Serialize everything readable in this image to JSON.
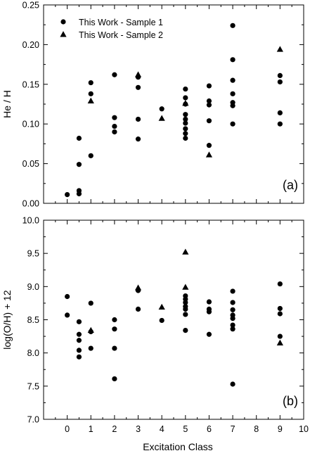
{
  "chart_data": [
    {
      "type": "scatter",
      "panel_label": "(a)",
      "ylabel": "He / H",
      "xlim": [
        -1,
        10
      ],
      "ylim": [
        0.0,
        0.25
      ],
      "yticks": [
        0.0,
        0.05,
        0.1,
        0.15,
        0.2,
        0.25
      ],
      "ytick_labels": [
        "0.00",
        "0.05",
        "0.10",
        "0.15",
        "0.20",
        "0.25"
      ],
      "legend": {
        "placement": "top-left",
        "entries": [
          {
            "label": "This Work - Sample 1",
            "marker": "circle"
          },
          {
            "label": "This Work - Sample 2",
            "marker": "triangle"
          }
        ]
      },
      "series": [
        {
          "name": "This Work - Sample 1",
          "marker": "circle",
          "points": [
            [
              0,
              0.011
            ],
            [
              0.5,
              0.082
            ],
            [
              0.5,
              0.049
            ],
            [
              0.5,
              0.016
            ],
            [
              0.5,
              0.012
            ],
            [
              1,
              0.152
            ],
            [
              1,
              0.138
            ],
            [
              1,
              0.06
            ],
            [
              2,
              0.162
            ],
            [
              2,
              0.108
            ],
            [
              2,
              0.097
            ],
            [
              2,
              0.09
            ],
            [
              3,
              0.159
            ],
            [
              3,
              0.146
            ],
            [
              3,
              0.106
            ],
            [
              3,
              0.081
            ],
            [
              4,
              0.119
            ],
            [
              5,
              0.144
            ],
            [
              5,
              0.133
            ],
            [
              5,
              0.125
            ],
            [
              5,
              0.112
            ],
            [
              5,
              0.106
            ],
            [
              5,
              0.101
            ],
            [
              5,
              0.094
            ],
            [
              5,
              0.088
            ],
            [
              5,
              0.082
            ],
            [
              6,
              0.148
            ],
            [
              6,
              0.129
            ],
            [
              6,
              0.124
            ],
            [
              6,
              0.104
            ],
            [
              6,
              0.073
            ],
            [
              7,
              0.224
            ],
            [
              7,
              0.181
            ],
            [
              7,
              0.155
            ],
            [
              7,
              0.138
            ],
            [
              7,
              0.127
            ],
            [
              7,
              0.123
            ],
            [
              7,
              0.1
            ],
            [
              9,
              0.161
            ],
            [
              9,
              0.153
            ],
            [
              9,
              0.114
            ],
            [
              9,
              0.1
            ]
          ]
        },
        {
          "name": "This Work - Sample 2",
          "marker": "triangle",
          "points": [
            [
              1,
              0.129
            ],
            [
              3,
              0.162
            ],
            [
              4,
              0.107
            ],
            [
              5,
              0.126
            ],
            [
              6,
              0.061
            ],
            [
              9,
              0.194
            ]
          ]
        }
      ]
    },
    {
      "type": "scatter",
      "panel_label": "(b)",
      "ylabel": "log(O/H) + 12",
      "xlabel": "Excitation Class",
      "xlim": [
        -1,
        10
      ],
      "xticks": [
        0,
        1,
        2,
        3,
        4,
        5,
        6,
        7,
        8,
        9,
        10
      ],
      "ylim": [
        7.0,
        10.0
      ],
      "yticks": [
        7.0,
        7.5,
        8.0,
        8.5,
        9.0,
        9.5,
        10.0
      ],
      "ytick_labels": [
        "7.0",
        "7.5",
        "8.0",
        "8.5",
        "9.0",
        "9.5",
        "10.0"
      ],
      "series": [
        {
          "name": "This Work - Sample 1",
          "marker": "circle",
          "points": [
            [
              0,
              8.85
            ],
            [
              0,
              8.57
            ],
            [
              0.5,
              8.47
            ],
            [
              0.5,
              8.28
            ],
            [
              0.5,
              8.19
            ],
            [
              0.5,
              8.04
            ],
            [
              0.5,
              7.94
            ],
            [
              1,
              8.75
            ],
            [
              1,
              8.32
            ],
            [
              1,
              8.07
            ],
            [
              2,
              8.5
            ],
            [
              2,
              8.36
            ],
            [
              2,
              8.07
            ],
            [
              2,
              7.61
            ],
            [
              3,
              8.94
            ],
            [
              3,
              8.66
            ],
            [
              4,
              8.49
            ],
            [
              5,
              8.86
            ],
            [
              5,
              8.81
            ],
            [
              5,
              8.76
            ],
            [
              5,
              8.7
            ],
            [
              5,
              8.66
            ],
            [
              5,
              8.58
            ],
            [
              5,
              8.34
            ],
            [
              6,
              8.77
            ],
            [
              6,
              8.66
            ],
            [
              6,
              8.62
            ],
            [
              6,
              8.28
            ],
            [
              7,
              8.93
            ],
            [
              7,
              8.76
            ],
            [
              7,
              8.65
            ],
            [
              7,
              8.57
            ],
            [
              7,
              8.52
            ],
            [
              7,
              8.42
            ],
            [
              7,
              8.36
            ],
            [
              7,
              7.53
            ],
            [
              9,
              9.04
            ],
            [
              9,
              8.67
            ],
            [
              9,
              8.59
            ],
            [
              9,
              8.25
            ]
          ]
        },
        {
          "name": "This Work - Sample 2",
          "marker": "triangle",
          "points": [
            [
              1,
              8.34
            ],
            [
              3,
              8.98
            ],
            [
              4,
              8.69
            ],
            [
              5,
              9.52
            ],
            [
              5,
              8.99
            ],
            [
              9,
              8.15
            ]
          ]
        }
      ]
    }
  ]
}
